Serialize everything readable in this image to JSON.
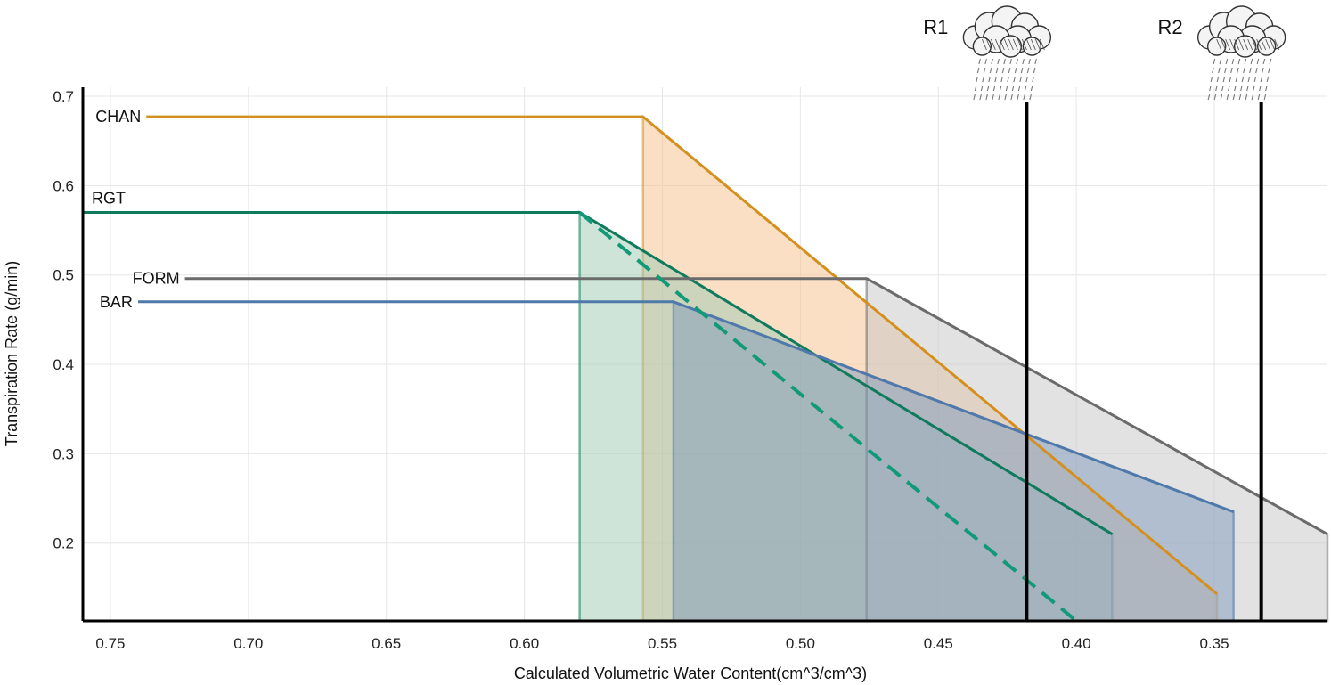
{
  "chart_data": {
    "type": "area",
    "xlabel": "Calculated Volumetric Water Content(cm^3/cm^3)",
    "ylabel": "Transpiration Rate (g/min)",
    "x_reversed": true,
    "xlim": [
      0.76,
      0.309
    ],
    "ylim": [
      0.113,
      0.71
    ],
    "x_ticks": [
      0.75,
      0.7,
      0.65,
      0.6,
      0.55,
      0.5,
      0.45,
      0.4,
      0.35
    ],
    "x_tick_labels": [
      "0.75",
      "0.70",
      "0.65",
      "0.60",
      "0.55",
      "0.50",
      "0.45",
      "0.40",
      "0.35"
    ],
    "y_ticks": [
      0.2,
      0.3,
      0.4,
      0.5,
      0.6,
      0.7
    ],
    "y_tick_labels": [
      "0.2",
      "0.3",
      "0.4",
      "0.5",
      "0.6",
      "0.7"
    ],
    "grid": true,
    "series": [
      {
        "name": "CHAN",
        "color": "#d4901e",
        "fill": "#f5c08a",
        "plateau": 0.677,
        "line": [
          [
            0.737,
            0.677
          ],
          [
            0.557,
            0.677
          ],
          [
            0.349,
            0.143
          ]
        ],
        "envelope": [
          [
            0.557,
            0.113
          ],
          [
            0.557,
            0.677
          ],
          [
            0.349,
            0.143
          ],
          [
            0.349,
            0.113
          ]
        ]
      },
      {
        "name": "RGT",
        "color": "#0f7a5c",
        "fill": "#9dcab2",
        "plateau": 0.57,
        "line": [
          [
            0.76,
            0.57
          ],
          [
            0.58,
            0.57
          ],
          [
            0.387,
            0.21
          ]
        ],
        "envelope": [
          [
            0.58,
            0.113
          ],
          [
            0.58,
            0.57
          ],
          [
            0.387,
            0.21
          ],
          [
            0.387,
            0.113
          ]
        ],
        "dashed_line": [
          [
            0.58,
            0.57
          ],
          [
            0.4,
            0.113
          ]
        ]
      },
      {
        "name": "FORM",
        "color": "#6b6b6b",
        "fill": "#c6c6c6",
        "plateau": 0.496,
        "line": [
          [
            0.723,
            0.496
          ],
          [
            0.476,
            0.496
          ],
          [
            0.309,
            0.21
          ]
        ],
        "envelope": [
          [
            0.476,
            0.113
          ],
          [
            0.476,
            0.496
          ],
          [
            0.309,
            0.21
          ],
          [
            0.309,
            0.113
          ]
        ]
      },
      {
        "name": "BAR",
        "color": "#4f79aa",
        "fill": "#7f9abb",
        "plateau": 0.47,
        "line": [
          [
            0.74,
            0.47
          ],
          [
            0.546,
            0.47
          ],
          [
            0.343,
            0.235
          ]
        ],
        "envelope": [
          [
            0.546,
            0.113
          ],
          [
            0.546,
            0.47
          ],
          [
            0.343,
            0.235
          ],
          [
            0.343,
            0.113
          ]
        ]
      }
    ],
    "vertical_markers": [
      {
        "label": "R1",
        "x": 0.418,
        "icon": "rain-cloud-icon"
      },
      {
        "label": "R2",
        "x": 0.333,
        "icon": "rain-cloud-icon"
      }
    ]
  }
}
